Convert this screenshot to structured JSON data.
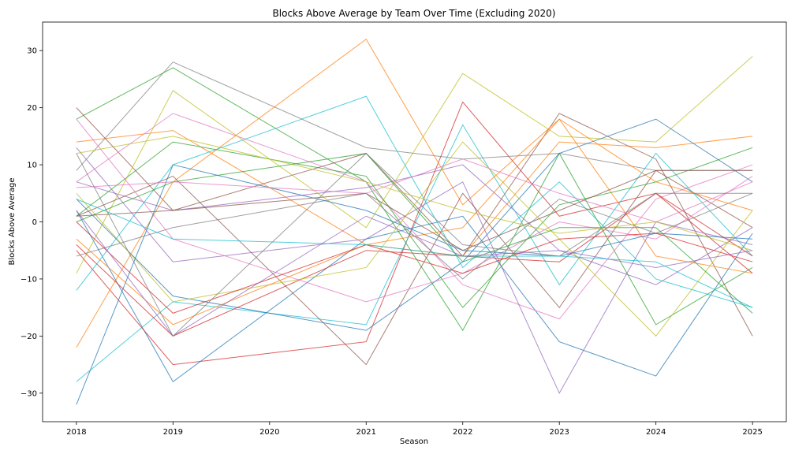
{
  "chart_data": {
    "type": "line",
    "title": "Blocks Above Average by Team Over Time (Excluding 2020)",
    "xlabel": "Season",
    "ylabel": "Blocks Above Average",
    "x": [
      2018,
      2019,
      2020,
      2021,
      2022,
      2023,
      2024,
      2025
    ],
    "x_ticks": [
      "2018",
      "2019",
      "2020",
      "2021",
      "2022",
      "2023",
      "2024",
      "2025"
    ],
    "y_ticks": [
      "−30",
      "−20",
      "−10",
      "0",
      "10",
      "20",
      "30"
    ],
    "xlim": [
      2017.65,
      2025.35
    ],
    "ylim": [
      -35,
      35
    ],
    "grid": false,
    "series": [
      {
        "points": [
          [
            2018,
            2
          ],
          [
            2019,
            -28
          ],
          [
            2021,
            -3
          ],
          [
            2022,
            1
          ],
          [
            2023,
            -21
          ],
          [
            2024,
            -27
          ],
          [
            2025,
            -2
          ]
        ],
        "color": "#1f77b4"
      },
      {
        "points": [
          [
            2018,
            14
          ],
          [
            2019,
            16
          ],
          [
            2021,
            -4
          ],
          [
            2022,
            -6
          ],
          [
            2023,
            14
          ],
          [
            2024,
            13
          ],
          [
            2025,
            15
          ]
        ],
        "color": "#ff7f0e"
      },
      {
        "points": [
          [
            2018,
            18
          ],
          [
            2019,
            27
          ],
          [
            2021,
            7
          ],
          [
            2022,
            -19
          ],
          [
            2023,
            12
          ],
          [
            2024,
            -18
          ],
          [
            2025,
            -8
          ]
        ],
        "color": "#2ca02c"
      },
      {
        "points": [
          [
            2018,
            -5
          ],
          [
            2019,
            -25
          ],
          [
            2021,
            -21
          ],
          [
            2022,
            21
          ],
          [
            2023,
            1
          ],
          [
            2024,
            5
          ],
          [
            2025,
            -9
          ]
        ],
        "color": "#d62728"
      },
      {
        "points": [
          [
            2018,
            7
          ],
          [
            2019,
            2
          ],
          [
            2021,
            6
          ],
          [
            2022,
            10
          ],
          [
            2023,
            -5
          ],
          [
            2024,
            -11
          ],
          [
            2025,
            -1
          ]
        ],
        "color": "#9467bd"
      },
      {
        "points": [
          [
            2018,
            20
          ],
          [
            2019,
            2
          ],
          [
            2021,
            12
          ],
          [
            2022,
            -6
          ],
          [
            2023,
            19
          ],
          [
            2024,
            11
          ],
          [
            2025,
            -20
          ]
        ],
        "color": "#8c564b"
      },
      {
        "points": [
          [
            2018,
            7
          ],
          [
            2019,
            19
          ],
          [
            2021,
            7
          ],
          [
            2022,
            -11
          ],
          [
            2023,
            -17
          ],
          [
            2024,
            4
          ],
          [
            2025,
            10
          ]
        ],
        "color": "#e377c2"
      },
      {
        "points": [
          [
            2018,
            9
          ],
          [
            2019,
            28
          ],
          [
            2021,
            13
          ],
          [
            2022,
            11
          ],
          [
            2023,
            12
          ],
          [
            2024,
            9
          ],
          [
            2025,
            9
          ]
        ],
        "color": "#7f7f7f"
      },
      {
        "points": [
          [
            2018,
            -9
          ],
          [
            2019,
            23
          ],
          [
            2021,
            -1
          ],
          [
            2022,
            26
          ],
          [
            2023,
            15
          ],
          [
            2024,
            14
          ],
          [
            2025,
            29
          ]
        ],
        "color": "#bcbd22"
      },
      {
        "points": [
          [
            2018,
            -28
          ],
          [
            2019,
            -14
          ],
          [
            2021,
            -18
          ],
          [
            2022,
            17
          ],
          [
            2023,
            -11
          ],
          [
            2024,
            12
          ],
          [
            2025,
            -6
          ]
        ],
        "color": "#17becf"
      },
      {
        "points": [
          [
            2018,
            4
          ],
          [
            2019,
            -13
          ],
          [
            2021,
            -19
          ],
          [
            2022,
            -7
          ],
          [
            2023,
            12
          ],
          [
            2024,
            18
          ],
          [
            2025,
            7
          ]
        ],
        "color": "#1f77b4"
      },
      {
        "points": [
          [
            2018,
            -22
          ],
          [
            2019,
            7
          ],
          [
            2021,
            32
          ],
          [
            2022,
            3
          ],
          [
            2023,
            18
          ],
          [
            2024,
            -6
          ],
          [
            2025,
            -9
          ]
        ],
        "color": "#ff7f0e"
      },
      {
        "points": [
          [
            2018,
            1
          ],
          [
            2019,
            14
          ],
          [
            2021,
            8
          ],
          [
            2022,
            -15
          ],
          [
            2023,
            3
          ],
          [
            2024,
            7
          ],
          [
            2025,
            13
          ]
        ],
        "color": "#2ca02c"
      },
      {
        "points": [
          [
            2018,
            -4
          ],
          [
            2019,
            -20
          ],
          [
            2021,
            -5
          ],
          [
            2022,
            -6
          ],
          [
            2023,
            -7
          ],
          [
            2024,
            5
          ],
          [
            2025,
            -6
          ]
        ],
        "color": "#d62728"
      },
      {
        "points": [
          [
            2018,
            13
          ],
          [
            2019,
            -7
          ],
          [
            2021,
            -3
          ],
          [
            2022,
            7
          ],
          [
            2023,
            -30
          ],
          [
            2024,
            0
          ],
          [
            2025,
            -4
          ]
        ],
        "color": "#9467bd"
      },
      {
        "points": [
          [
            2018,
            1
          ],
          [
            2019,
            8
          ],
          [
            2021,
            -25
          ],
          [
            2022,
            5
          ],
          [
            2023,
            -15
          ],
          [
            2024,
            9
          ],
          [
            2025,
            -1
          ]
        ],
        "color": "#8c564b"
      },
      {
        "points": [
          [
            2018,
            18
          ],
          [
            2019,
            -3
          ],
          [
            2021,
            -14
          ],
          [
            2022,
            -9
          ],
          [
            2023,
            0
          ],
          [
            2024,
            -3
          ],
          [
            2025,
            8
          ]
        ],
        "color": "#e377c2"
      },
      {
        "points": [
          [
            2018,
            -6
          ],
          [
            2019,
            -1
          ],
          [
            2021,
            5
          ],
          [
            2022,
            -10
          ],
          [
            2023,
            4
          ],
          [
            2024,
            -2
          ],
          [
            2025,
            5
          ]
        ],
        "color": "#7f7f7f"
      },
      {
        "points": [
          [
            2018,
            5
          ],
          [
            2019,
            -14
          ],
          [
            2021,
            -8
          ],
          [
            2022,
            14
          ],
          [
            2023,
            -3
          ],
          [
            2024,
            -20
          ],
          [
            2025,
            2
          ]
        ],
        "color": "#bcbd22"
      },
      {
        "points": [
          [
            2018,
            -12
          ],
          [
            2019,
            10
          ],
          [
            2021,
            22
          ],
          [
            2022,
            -8
          ],
          [
            2023,
            7
          ],
          [
            2024,
            -10
          ],
          [
            2025,
            -15
          ]
        ],
        "color": "#17becf"
      },
      {
        "points": [
          [
            2018,
            -32
          ],
          [
            2019,
            10
          ],
          [
            2021,
            2
          ],
          [
            2022,
            -5
          ],
          [
            2023,
            -6
          ],
          [
            2024,
            -2
          ],
          [
            2025,
            -3
          ]
        ],
        "color": "#1f77b4"
      },
      {
        "points": [
          [
            2018,
            -3
          ],
          [
            2019,
            -18
          ],
          [
            2021,
            -4
          ],
          [
            2022,
            -1
          ],
          [
            2023,
            18
          ],
          [
            2024,
            7
          ],
          [
            2025,
            2
          ]
        ],
        "color": "#ff7f0e"
      },
      {
        "points": [
          [
            2018,
            0
          ],
          [
            2019,
            7
          ],
          [
            2021,
            12
          ],
          [
            2022,
            -7
          ],
          [
            2023,
            -1
          ],
          [
            2024,
            -1
          ],
          [
            2025,
            -16
          ]
        ],
        "color": "#2ca02c"
      },
      {
        "points": [
          [
            2018,
            0
          ],
          [
            2019,
            -16
          ],
          [
            2021,
            -4
          ],
          [
            2022,
            -9
          ],
          [
            2023,
            -3
          ],
          [
            2024,
            -2
          ],
          [
            2025,
            -7
          ]
        ],
        "color": "#d62728"
      },
      {
        "points": [
          [
            2018,
            2
          ],
          [
            2019,
            -20
          ],
          [
            2021,
            1
          ],
          [
            2022,
            -6
          ],
          [
            2023,
            -5
          ],
          [
            2024,
            -8
          ],
          [
            2025,
            -5
          ]
        ],
        "color": "#9467bd"
      },
      {
        "points": [
          [
            2018,
            1
          ],
          [
            2019,
            2
          ],
          [
            2021,
            5
          ],
          [
            2022,
            -5
          ],
          [
            2023,
            2
          ],
          [
            2024,
            9
          ],
          [
            2025,
            9
          ]
        ],
        "color": "#8c564b"
      },
      {
        "points": [
          [
            2018,
            6
          ],
          [
            2019,
            7
          ],
          [
            2021,
            5
          ],
          [
            2022,
            11
          ],
          [
            2023,
            5
          ],
          [
            2024,
            0
          ],
          [
            2025,
            7
          ]
        ],
        "color": "#e377c2"
      },
      {
        "points": [
          [
            2018,
            12
          ],
          [
            2019,
            -20
          ],
          [
            2021,
            12
          ],
          [
            2022,
            -4
          ],
          [
            2023,
            -6
          ],
          [
            2024,
            5
          ],
          [
            2025,
            5
          ]
        ],
        "color": "#7f7f7f"
      },
      {
        "points": [
          [
            2018,
            12
          ],
          [
            2019,
            15
          ],
          [
            2021,
            7
          ],
          [
            2022,
            2
          ],
          [
            2023,
            -2
          ],
          [
            2024,
            0
          ],
          [
            2025,
            -5
          ]
        ],
        "color": "#bcbd22"
      },
      {
        "points": [
          [
            2018,
            4
          ],
          [
            2019,
            -3
          ],
          [
            2021,
            -4
          ],
          [
            2022,
            -6
          ],
          [
            2023,
            -6
          ],
          [
            2024,
            -7
          ],
          [
            2025,
            -15
          ]
        ],
        "color": "#17becf"
      }
    ]
  }
}
